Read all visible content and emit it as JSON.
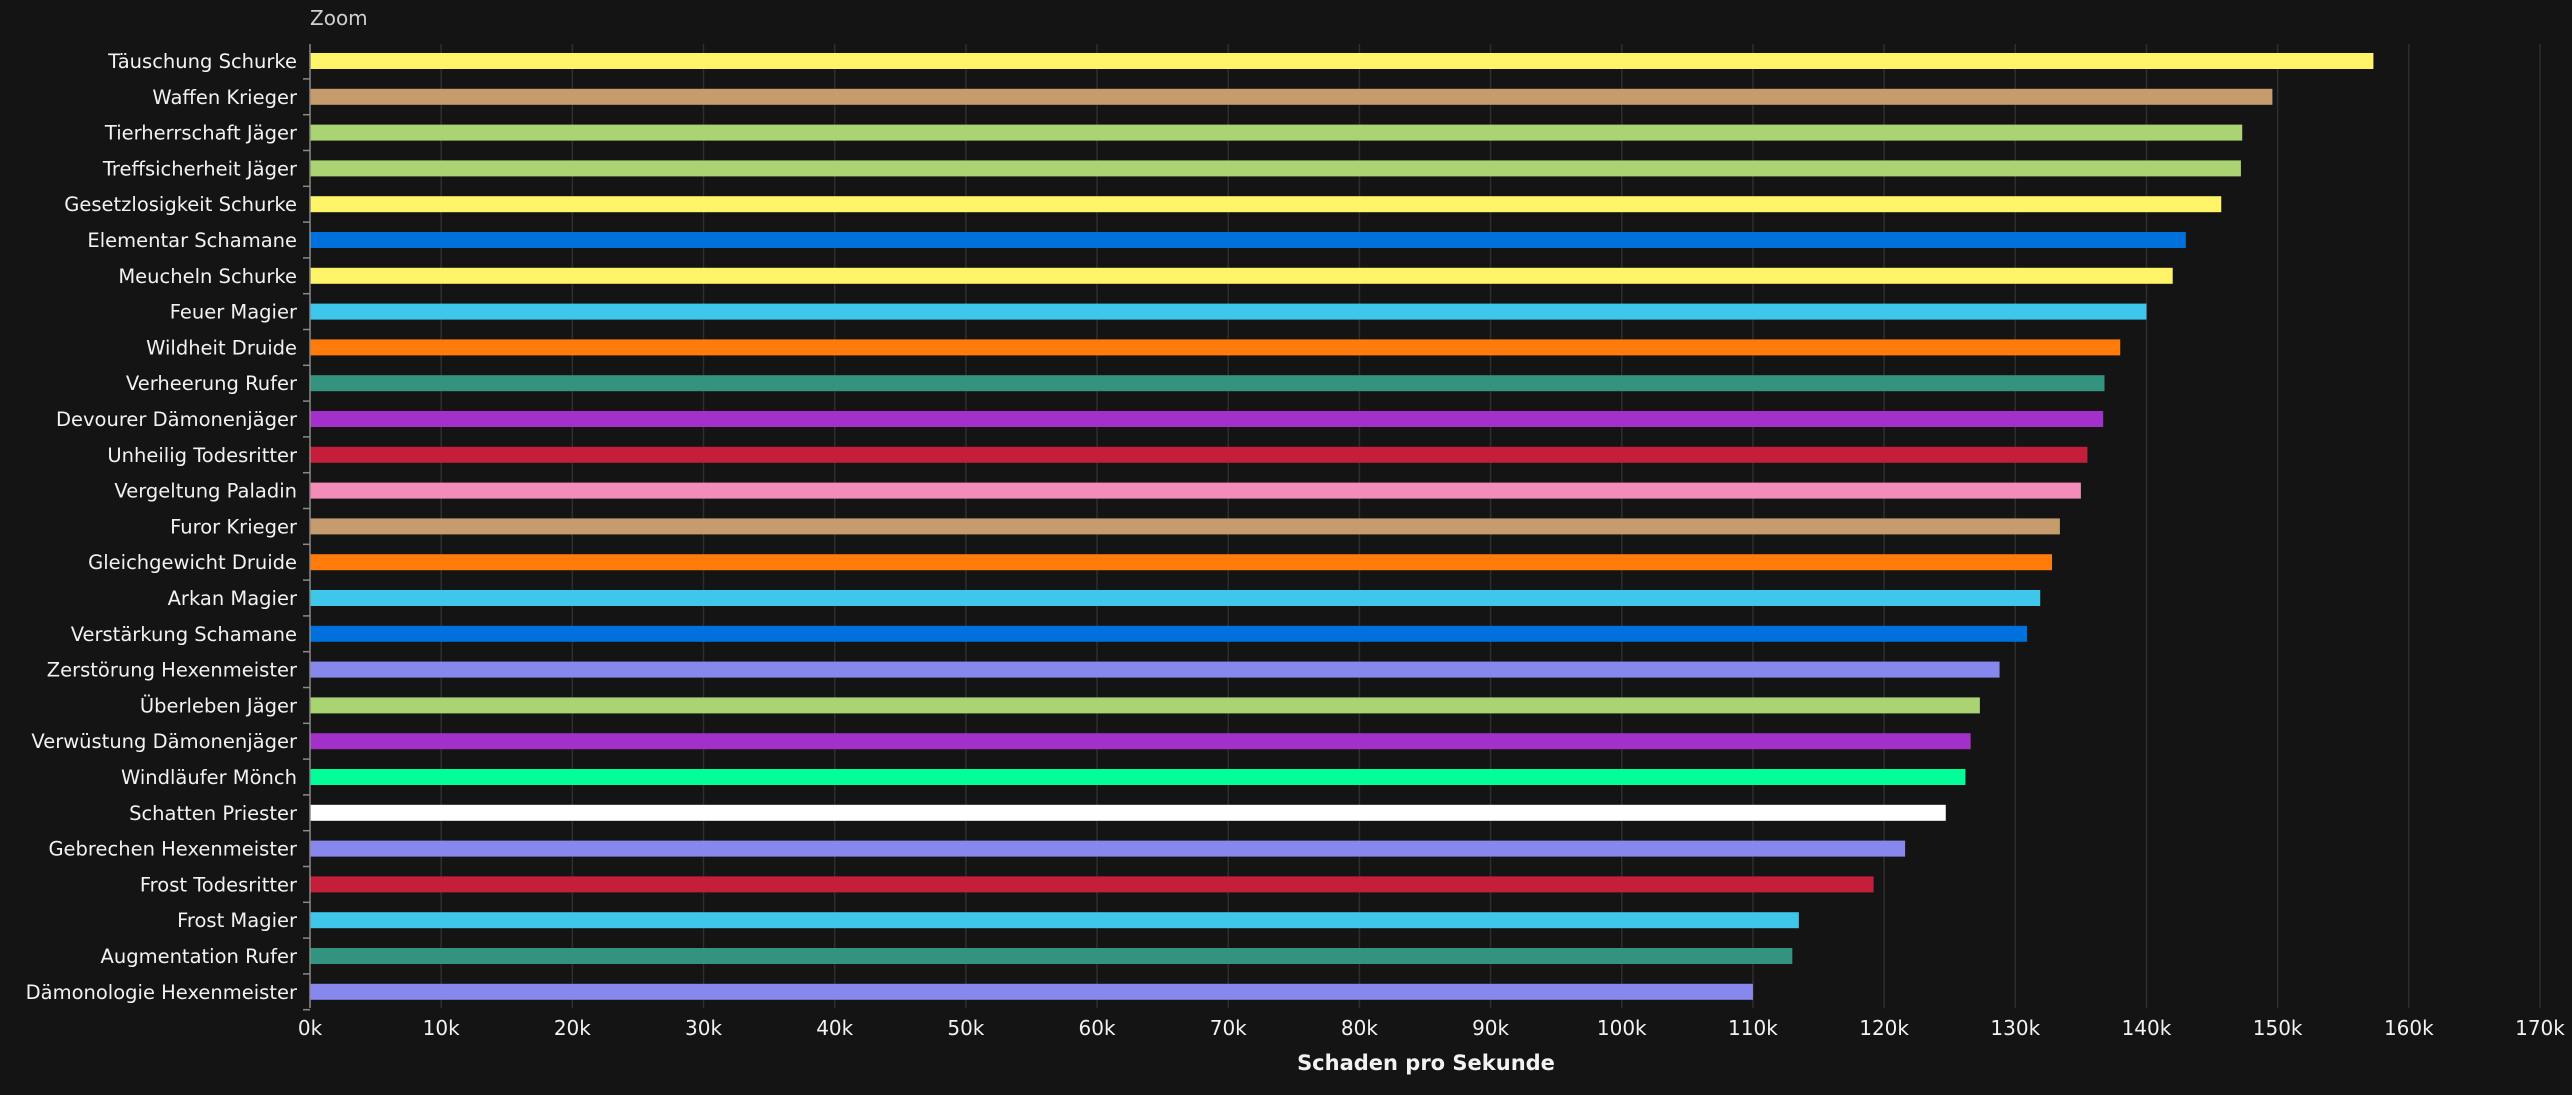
{
  "zoom_label": "Zoom",
  "chart_data": {
    "type": "bar",
    "orientation": "horizontal",
    "title": "",
    "xlabel": "Schaden pro Sekunde",
    "ylabel": "",
    "xlim": [
      0,
      170000
    ],
    "grid": true,
    "legend": "none",
    "tick_values": [
      0,
      10000,
      20000,
      30000,
      40000,
      50000,
      60000,
      70000,
      80000,
      90000,
      100000,
      110000,
      120000,
      130000,
      140000,
      150000,
      160000,
      170000
    ],
    "tick_labels": [
      "0k",
      "10k",
      "20k",
      "30k",
      "40k",
      "50k",
      "60k",
      "70k",
      "80k",
      "90k",
      "100k",
      "110k",
      "120k",
      "130k",
      "140k",
      "150k",
      "160k",
      "170k"
    ],
    "categories": [
      "Täuschung Schurke",
      "Waffen Krieger",
      "Tierherrschaft Jäger",
      "Treffsicherheit Jäger",
      "Gesetzlosigkeit Schurke",
      "Elementar Schamane",
      "Meucheln Schurke",
      "Feuer Magier",
      "Wildheit Druide",
      "Verheerung Rufer",
      "Devourer Dämonenjäger",
      "Unheilig Todesritter",
      "Vergeltung Paladin",
      "Furor Krieger",
      "Gleichgewicht Druide",
      "Arkan Magier",
      "Verstärkung Schamane",
      "Zerstörung Hexenmeister",
      "Überleben Jäger",
      "Verwüstung Dämonenjäger",
      "Windläufer Mönch",
      "Schatten Priester",
      "Gebrechen Hexenmeister",
      "Frost Todesritter",
      "Frost Magier",
      "Augmentation Rufer",
      "Dämonologie Hexenmeister"
    ],
    "values": [
      157300,
      149600,
      147300,
      147200,
      145700,
      143000,
      142000,
      140000,
      138000,
      136800,
      136700,
      135500,
      135000,
      133400,
      132800,
      131900,
      130900,
      128800,
      127300,
      126600,
      126200,
      124700,
      121600,
      119200,
      113500,
      113000,
      110000
    ],
    "colors": [
      "#FFF468",
      "#C69B6D",
      "#AAD372",
      "#AAD372",
      "#FFF468",
      "#0070DD",
      "#FFF468",
      "#3FC7EB",
      "#FF7C0A",
      "#33937F",
      "#A330C9",
      "#C41E3A",
      "#F48CBA",
      "#C69B6D",
      "#FF7C0A",
      "#3FC7EB",
      "#0070DD",
      "#8788EE",
      "#AAD372",
      "#A330C9",
      "#00FF98",
      "#FFFFFF",
      "#8788EE",
      "#C41E3A",
      "#3FC7EB",
      "#33937F",
      "#8788EE"
    ]
  }
}
